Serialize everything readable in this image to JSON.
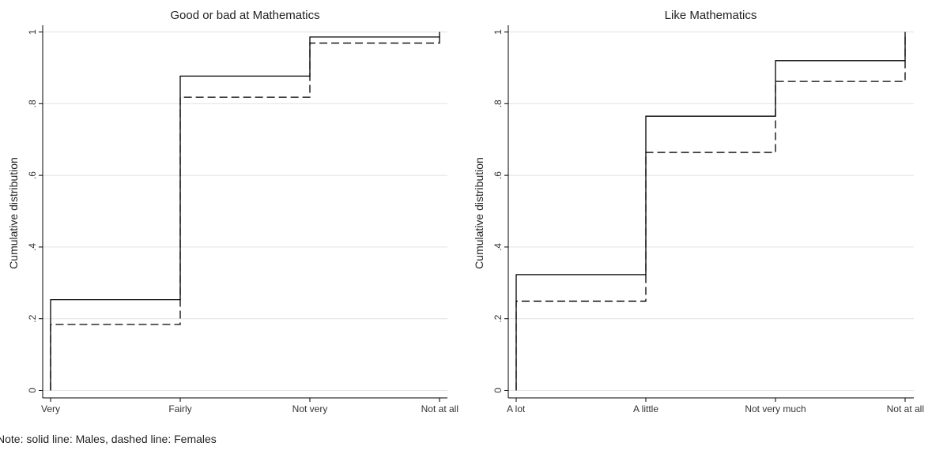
{
  "chart_data": [
    {
      "type": "step",
      "title": "Good or bad at Mathematics",
      "ylabel": "Cumulative distribution",
      "xlabel": "",
      "categories": [
        "Very",
        "Fairly",
        "Not very",
        "Not at all"
      ],
      "y_ticks": [
        "0",
        ".2",
        ".4",
        ".6",
        ".8",
        "1"
      ],
      "ylim": [
        0,
        1
      ],
      "grid": true,
      "series": [
        {
          "name": "Males",
          "style": "solid",
          "values": [
            0.253,
            0.877,
            0.986,
            1.0
          ]
        },
        {
          "name": "Females",
          "style": "dashed",
          "values": [
            0.184,
            0.818,
            0.969,
            1.0
          ]
        }
      ]
    },
    {
      "type": "step",
      "title": "Like Mathematics",
      "ylabel": "Cumulative distribution",
      "xlabel": "",
      "categories": [
        "A lot",
        "A little",
        "Not very much",
        "Not at all"
      ],
      "y_ticks": [
        "0",
        ".2",
        ".4",
        ".6",
        ".8",
        "1"
      ],
      "ylim": [
        0,
        1
      ],
      "grid": true,
      "series": [
        {
          "name": "Males",
          "style": "solid",
          "values": [
            0.323,
            0.765,
            0.92,
            1.0
          ]
        },
        {
          "name": "Females",
          "style": "dashed",
          "values": [
            0.249,
            0.664,
            0.862,
            1.0
          ]
        }
      ]
    }
  ],
  "note": "Note: solid line: Males, dashed line: Females",
  "colors": {
    "line": "#000000",
    "grid": "#e2e2e2",
    "axis": "#000000"
  }
}
